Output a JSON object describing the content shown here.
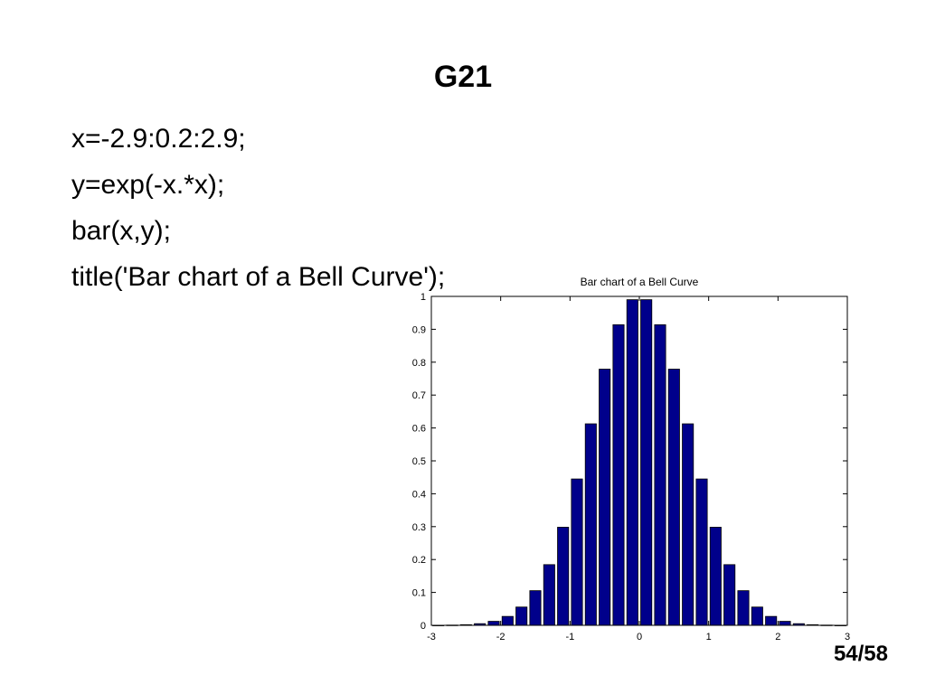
{
  "slide": {
    "title": "G21",
    "code_lines": [
      "x=-2.9:0.2:2.9;",
      "y=exp(-x.*x);",
      "bar(x,y);",
      "title('Bar chart of a Bell Curve');"
    ],
    "page_number": "54/58"
  },
  "chart_data": {
    "type": "bar",
    "title": "Bar chart of a Bell Curve",
    "xlabel": "",
    "ylabel": "",
    "xlim": [
      -3,
      3
    ],
    "ylim": [
      0,
      1
    ],
    "xticks": [
      "-3",
      "-2",
      "-1",
      "0",
      "1",
      "2",
      "3"
    ],
    "yticks": [
      "0",
      "0.1",
      "0.2",
      "0.3",
      "0.4",
      "0.5",
      "0.6",
      "0.7",
      "0.8",
      "0.9",
      "1"
    ],
    "grid": false,
    "bar_color": "#00008b",
    "x": [
      -2.9,
      -2.7,
      -2.5,
      -2.3,
      -2.1,
      -1.9,
      -1.7,
      -1.5,
      -1.3,
      -1.1,
      -0.9,
      -0.7,
      -0.5,
      -0.3,
      -0.1,
      0.1,
      0.3,
      0.5,
      0.7,
      0.9,
      1.1,
      1.3,
      1.5,
      1.7,
      1.9,
      2.1,
      2.3,
      2.5,
      2.7,
      2.9
    ],
    "values": [
      0.0002,
      0.0007,
      0.0019,
      0.005,
      0.0122,
      0.0271,
      0.0556,
      0.1054,
      0.1845,
      0.2982,
      0.4449,
      0.6126,
      0.7788,
      0.9139,
      0.99,
      0.99,
      0.9139,
      0.7788,
      0.6126,
      0.4449,
      0.2982,
      0.1845,
      0.1054,
      0.0556,
      0.0271,
      0.0122,
      0.005,
      0.0019,
      0.0007,
      0.0002
    ]
  }
}
